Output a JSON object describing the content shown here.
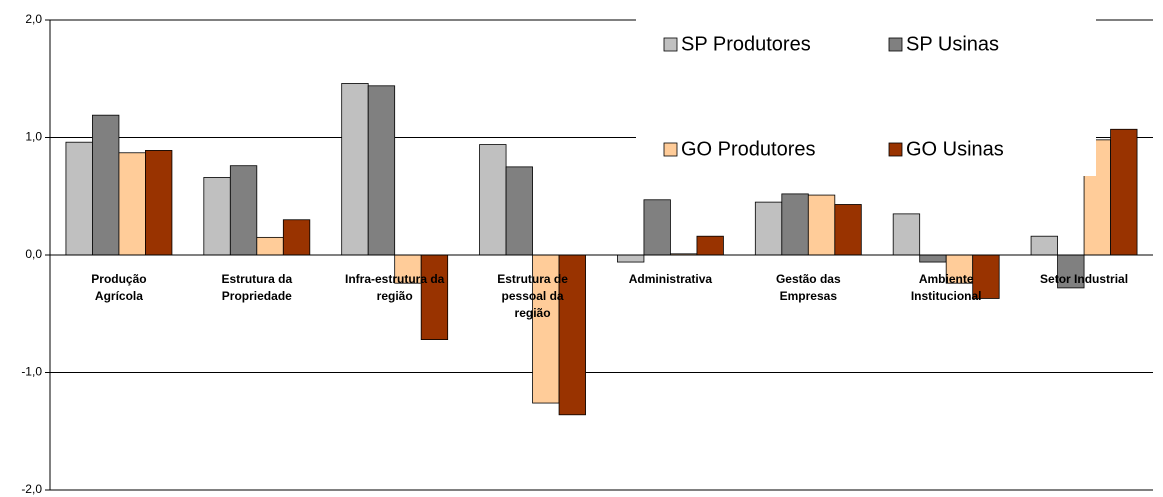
{
  "chart_data": {
    "type": "bar",
    "categories": [
      "Produção Agrícola",
      "Estrutura da Propriedade",
      "Infra-estrutura da região",
      "Estrutura de pessoal da região",
      "Administrativa",
      "Gestão das Empresas",
      "Ambiente Institucional",
      "Setor Industrial"
    ],
    "series": [
      {
        "name": "SP Produtores",
        "color": "#c0c0c0",
        "values": [
          0.96,
          0.66,
          1.46,
          0.94,
          -0.06,
          0.45,
          0.35,
          0.16
        ]
      },
      {
        "name": "SP Usinas",
        "color": "#808080",
        "values": [
          1.19,
          0.76,
          1.44,
          0.75,
          0.47,
          0.52,
          -0.06,
          -0.28
        ]
      },
      {
        "name": "GO Produtores",
        "color": "#ffcc99",
        "values": [
          0.87,
          0.15,
          -0.24,
          -1.26,
          0.01,
          0.51,
          -0.24,
          0.98
        ]
      },
      {
        "name": "GO Usinas",
        "color": "#993300",
        "values": [
          0.89,
          0.3,
          -0.72,
          -1.36,
          0.16,
          0.43,
          -0.37,
          1.07
        ]
      }
    ],
    "ylim": [
      -2,
      2
    ],
    "yticks": [
      {
        "value": -2,
        "label": "-2,0"
      },
      {
        "value": -1,
        "label": "-1,0"
      },
      {
        "value": 0,
        "label": "0,0"
      },
      {
        "value": 1,
        "label": "1,0"
      },
      {
        "value": 2,
        "label": "2,0"
      }
    ],
    "grid": true,
    "legend": "upper right"
  }
}
